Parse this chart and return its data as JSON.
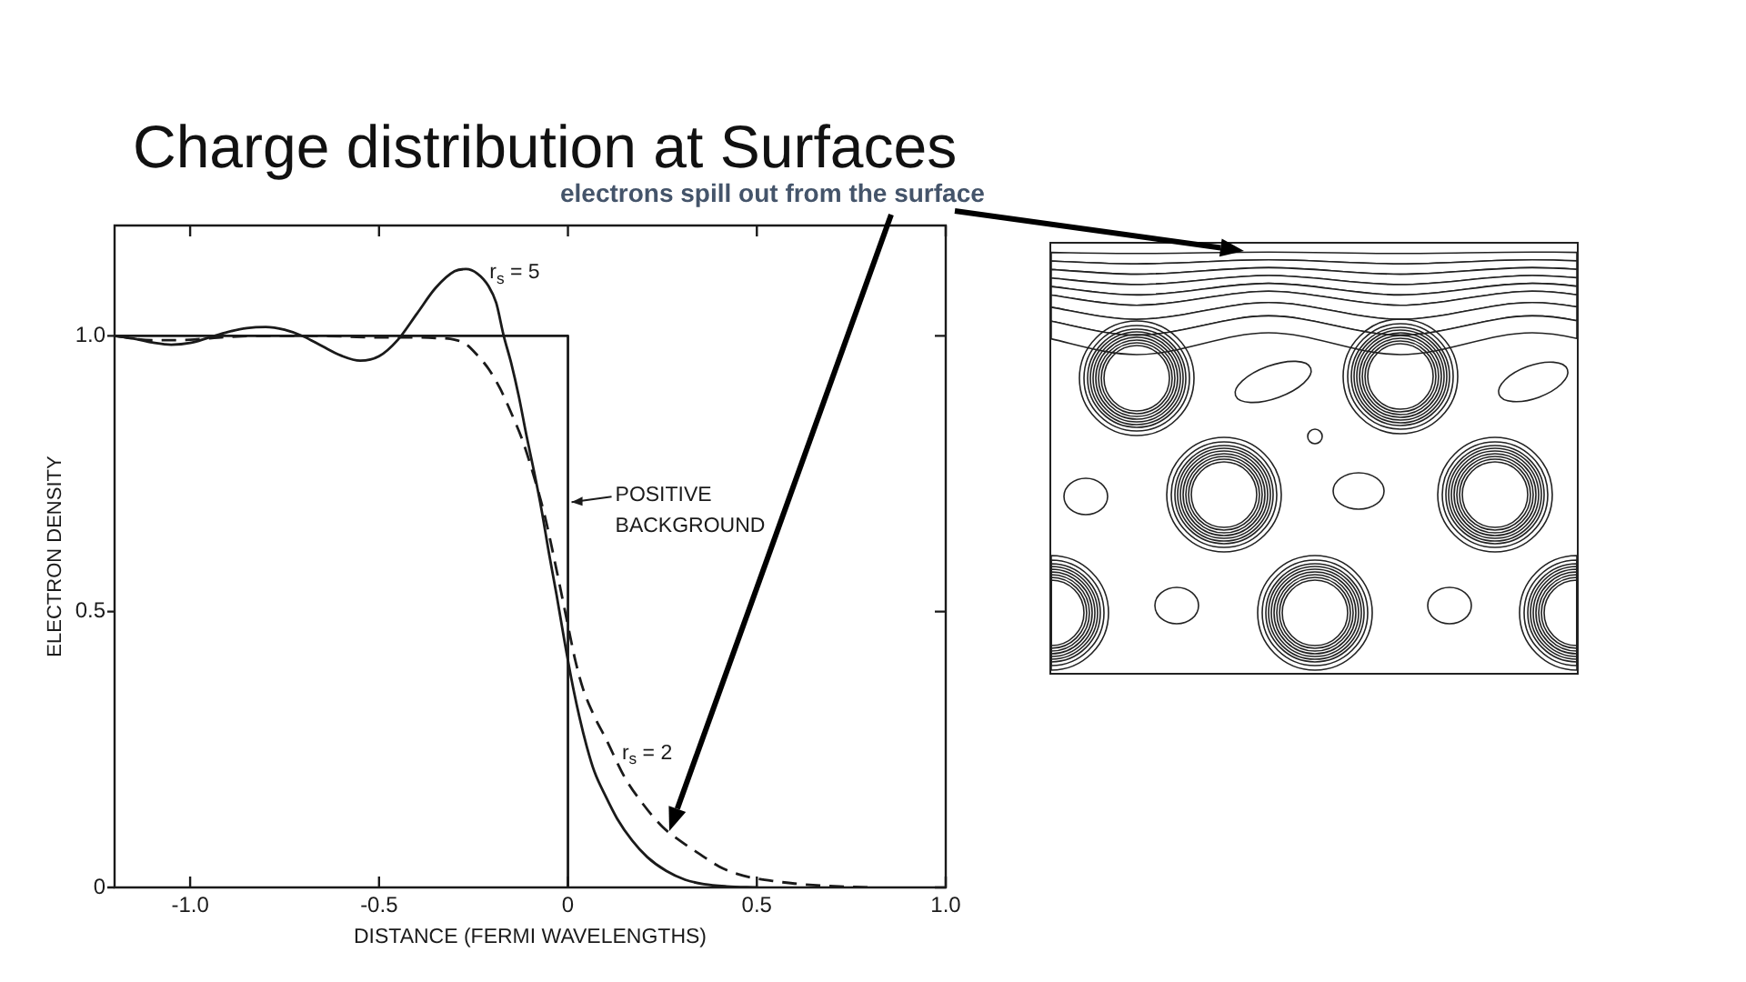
{
  "chart_data": {
    "type": "line",
    "title": "Charge distribution at Surfaces",
    "subtitle": "electrons spill out from the surface",
    "xlabel": "DISTANCE (FERMI WAVELENGTHS)",
    "ylabel": "ELECTRON DENSITY",
    "xlim": [
      -1.2,
      1.0
    ],
    "ylim": [
      0,
      1.2
    ],
    "xticks": [
      {
        "value": -1,
        "label": "-1.0"
      },
      -0.5,
      0,
      0.5,
      {
        "value": 1,
        "label": "1.0"
      }
    ],
    "yticks": [
      0,
      0.5,
      {
        "value": 1,
        "label": "1.0"
      }
    ],
    "series": [
      {
        "name": "POSITIVE BACKGROUND",
        "color": "#1a1a1a",
        "line_style": "solid",
        "x": [
          -1.2,
          0,
          0
        ],
        "values": [
          1.0,
          1.0,
          0
        ]
      },
      {
        "name": "r$_{s}$ = 5",
        "color": "#1a1a1a",
        "line_style": "solid",
        "x": [
          -1.2,
          -1.15,
          -1.1,
          -1.05,
          -1.0,
          -0.95,
          -0.9,
          -0.85,
          -0.8,
          -0.75,
          -0.7,
          -0.65,
          -0.6,
          -0.55,
          -0.5,
          -0.45,
          -0.4,
          -0.35,
          -0.3,
          -0.27,
          -0.24,
          -0.21,
          -0.19,
          -0.17,
          -0.15,
          -0.13,
          -0.11,
          -0.09,
          -0.07,
          -0.05,
          -0.03,
          -0.01,
          0.01,
          0.03,
          0.05,
          0.07,
          0.1,
          0.13,
          0.17,
          0.21,
          0.26,
          0.31,
          0.36,
          0.42,
          0.5
        ],
        "values": [
          1.0,
          0.995,
          0.988,
          0.984,
          0.987,
          0.997,
          1.007,
          1.014,
          1.016,
          1.011,
          0.999,
          0.981,
          0.964,
          0.955,
          0.963,
          0.993,
          1.04,
          1.087,
          1.117,
          1.121,
          1.113,
          1.09,
          1.06,
          1.0,
          0.95,
          0.89,
          0.82,
          0.755,
          0.685,
          0.605,
          0.53,
          0.45,
          0.375,
          0.31,
          0.255,
          0.21,
          0.165,
          0.125,
          0.085,
          0.055,
          0.03,
          0.014,
          0.006,
          0.002,
          0
        ]
      },
      {
        "name": "r$_{s}$ = 2",
        "color": "#1a1a1a",
        "line_style": "dashed",
        "x": [
          -1.2,
          -1.1,
          -1.0,
          -0.9,
          -0.8,
          -0.7,
          -0.6,
          -0.5,
          -0.4,
          -0.35,
          -0.3,
          -0.27,
          -0.24,
          -0.21,
          -0.18,
          -0.15,
          -0.12,
          -0.09,
          -0.06,
          -0.03,
          0,
          0.02,
          0.04,
          0.07,
          0.1,
          0.15,
          0.2,
          0.25,
          0.3,
          0.35,
          0.4,
          0.45,
          0.5,
          0.55,
          0.6,
          0.68,
          0.8
        ],
        "values": [
          1.0,
          0.992,
          0.993,
          0.998,
          1.0,
          1.0,
          0.999,
          0.997,
          0.997,
          0.996,
          0.993,
          0.985,
          0.965,
          0.94,
          0.905,
          0.86,
          0.81,
          0.745,
          0.67,
          0.575,
          0.475,
          0.41,
          0.36,
          0.31,
          0.27,
          0.2,
          0.15,
          0.11,
          0.083,
          0.06,
          0.038,
          0.024,
          0.016,
          0.011,
          0.007,
          0.003,
          0
        ]
      }
    ]
  }
}
